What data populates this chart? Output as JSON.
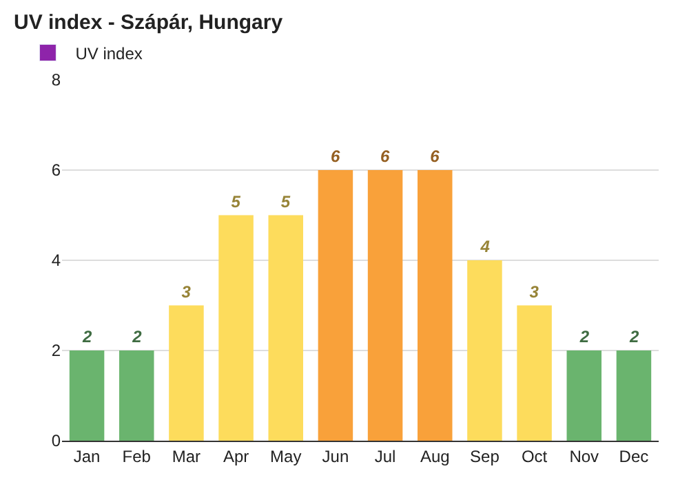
{
  "chart_data": {
    "type": "bar",
    "title": "UV index - Szápár, Hungary",
    "categories": [
      "Jan",
      "Feb",
      "Mar",
      "Apr",
      "May",
      "Jun",
      "Jul",
      "Aug",
      "Sep",
      "Oct",
      "Nov",
      "Dec"
    ],
    "series": [
      {
        "name": "UV index",
        "color": "#8e24aa",
        "values": [
          2,
          2,
          3,
          5,
          5,
          6,
          6,
          6,
          4,
          3,
          2,
          2
        ],
        "colors": [
          "#6ab46e",
          "#6ab46e",
          "#fddc5c",
          "#fddc5c",
          "#fddc5c",
          "#f9a13a",
          "#f9a13a",
          "#f9a13a",
          "#fddc5c",
          "#fddc5c",
          "#6ab46e",
          "#6ab46e"
        ]
      }
    ],
    "ylim": [
      0,
      8
    ],
    "yticks": [
      0,
      2,
      4,
      6,
      8
    ],
    "grid": "y",
    "legend": "top left",
    "data_labels": true
  }
}
